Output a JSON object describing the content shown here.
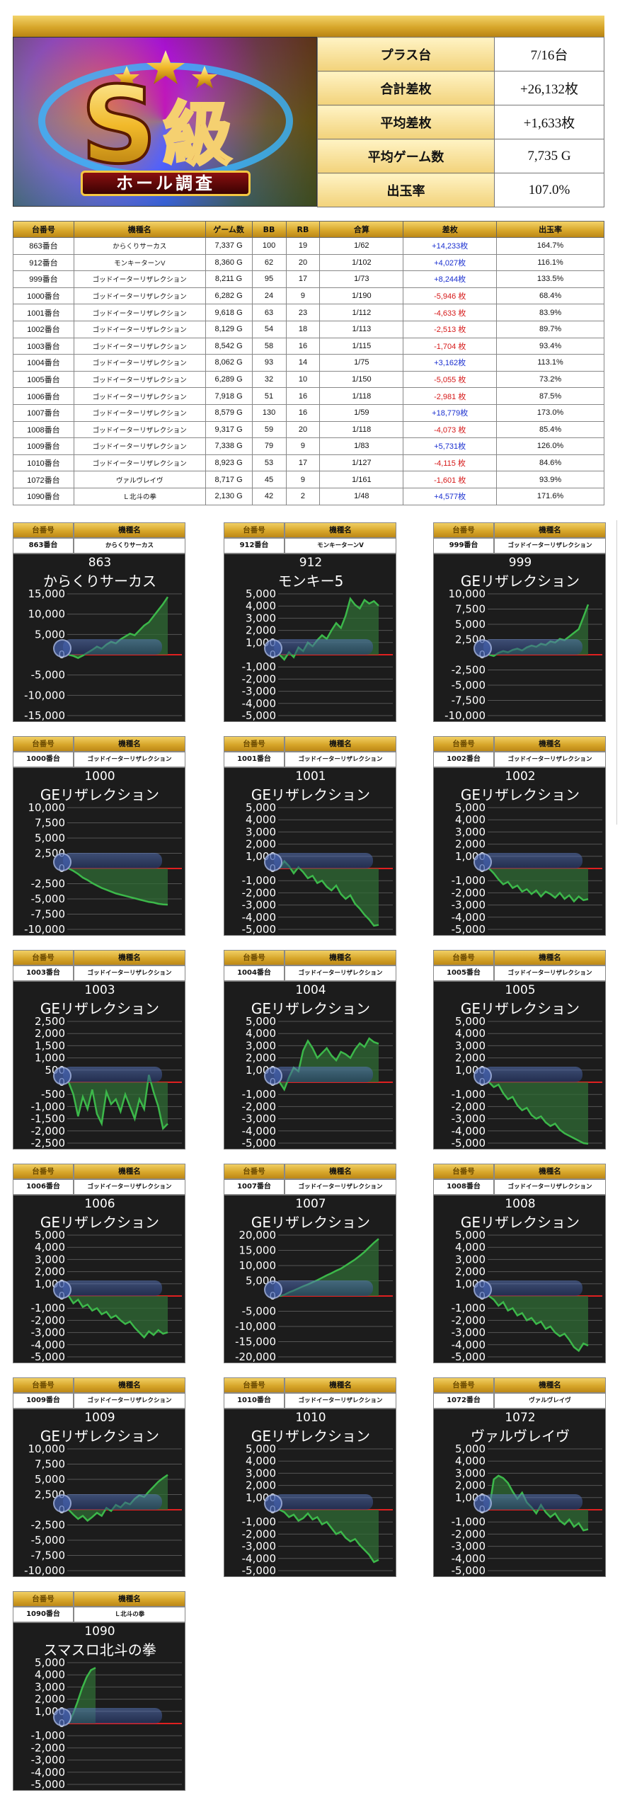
{
  "hero": {
    "badge_letter": "S",
    "badge_kanji": "級",
    "subtitle": "ホール調査"
  },
  "summary": [
    {
      "label": "プラス台",
      "value": "7/16台"
    },
    {
      "label": "合計差枚",
      "value": "+26,132枚"
    },
    {
      "label": "平均差枚",
      "value": "+1,633枚"
    },
    {
      "label": "平均ゲーム数",
      "value": "7,735 G"
    },
    {
      "label": "出玉率",
      "value": "107.0%"
    }
  ],
  "table": {
    "headers": [
      "台番号",
      "機種名",
      "ゲーム数",
      "BB",
      "RB",
      "合算",
      "差枚",
      "出玉率"
    ],
    "rows": [
      [
        "863番台",
        "からくりサーカス",
        "7,337 G",
        "100",
        "19",
        "1/62",
        "+14,233枚",
        "164.7%"
      ],
      [
        "912番台",
        "モンキーターンV",
        "8,360 G",
        "62",
        "20",
        "1/102",
        "+4,027枚",
        "116.1%"
      ],
      [
        "999番台",
        "ゴッドイーターリザレクション",
        "8,211 G",
        "95",
        "17",
        "1/73",
        "+8,244枚",
        "133.5%"
      ],
      [
        "1000番台",
        "ゴッドイーターリザレクション",
        "6,282 G",
        "24",
        "9",
        "1/190",
        "-5,946 枚",
        "68.4%"
      ],
      [
        "1001番台",
        "ゴッドイーターリザレクション",
        "9,618 G",
        "63",
        "23",
        "1/112",
        "-4,633 枚",
        "83.9%"
      ],
      [
        "1002番台",
        "ゴッドイーターリザレクション",
        "8,129 G",
        "54",
        "18",
        "1/113",
        "-2,513 枚",
        "89.7%"
      ],
      [
        "1003番台",
        "ゴッドイーターリザレクション",
        "8,542 G",
        "58",
        "16",
        "1/115",
        "-1,704 枚",
        "93.4%"
      ],
      [
        "1004番台",
        "ゴッドイーターリザレクション",
        "8,062 G",
        "93",
        "14",
        "1/75",
        "+3,162枚",
        "113.1%"
      ],
      [
        "1005番台",
        "ゴッドイーターリザレクション",
        "6,289 G",
        "32",
        "10",
        "1/150",
        "-5,055 枚",
        "73.2%"
      ],
      [
        "1006番台",
        "ゴッドイーターリザレクション",
        "7,918 G",
        "51",
        "16",
        "1/118",
        "-2,981 枚",
        "87.5%"
      ],
      [
        "1007番台",
        "ゴッドイーターリザレクション",
        "8,579 G",
        "130",
        "16",
        "1/59",
        "+18,779枚",
        "173.0%"
      ],
      [
        "1008番台",
        "ゴッドイーターリザレクション",
        "9,317 G",
        "59",
        "20",
        "1/118",
        "-4,073 枚",
        "85.4%"
      ],
      [
        "1009番台",
        "ゴッドイーターリザレクション",
        "7,338 G",
        "79",
        "9",
        "1/83",
        "+5,731枚",
        "126.0%"
      ],
      [
        "1010番台",
        "ゴッドイーターリザレクション",
        "8,923 G",
        "53",
        "17",
        "1/127",
        "-4,115 枚",
        "84.6%"
      ],
      [
        "1072番台",
        "ヴァルヴレイヴ",
        "8,717 G",
        "45",
        "9",
        "1/161",
        "-1,601 枚",
        "93.9%"
      ],
      [
        "1090番台",
        "Ｌ北斗の拳",
        "2,130 G",
        "42",
        "2",
        "1/48",
        "+4,577枚",
        "171.6%"
      ]
    ]
  },
  "panel_headers": {
    "col1": "台番号",
    "col2": "機種名"
  },
  "colors": {
    "line": "#3cb84a",
    "fill": "#2f6b34",
    "zero": "#e02020",
    "bg": "#1c1c1c",
    "plus": "#1a2fd0",
    "minus": "#d61818"
  },
  "chart_data": [
    {
      "type": "line",
      "machine_no": "863番台",
      "machine_name": "からくりサーカス",
      "title_num": "863",
      "title": "からくりサーカス",
      "yticks": [
        "15,000",
        "10,000",
        "5,000",
        "0",
        "-5,000",
        "-10,000",
        "-15,000"
      ],
      "ylim": [
        -15000,
        15000
      ],
      "final": 14233,
      "values": [
        0,
        -300,
        -800,
        -200,
        500,
        1200,
        2000,
        1500,
        2500,
        3200,
        2800,
        3800,
        4500,
        5200,
        4800,
        6000,
        7200,
        8000,
        9500,
        11000,
        12500,
        14233
      ]
    },
    {
      "type": "line",
      "machine_no": "912番台",
      "machine_name": "モンキーターンV",
      "title_num": "912",
      "title": "モンキー5",
      "yticks": [
        "5,000",
        "4,000",
        "3,000",
        "2,000",
        "1,000",
        "0",
        "-1,000",
        "-2,000",
        "-3,000",
        "-4,000",
        "-5,000"
      ],
      "ylim": [
        -5000,
        5000
      ],
      "final": 4027,
      "values": [
        0,
        -400,
        200,
        -200,
        600,
        300,
        1000,
        700,
        1200,
        1600,
        1300,
        2000,
        2600,
        2200,
        3200,
        4600,
        4100,
        3800,
        4500,
        4200,
        4400,
        4027
      ]
    },
    {
      "type": "line",
      "machine_no": "999番台",
      "machine_name": "ゴッドイーターリザレクション",
      "title_num": "999",
      "title": "GEリザレクション",
      "yticks": [
        "10,000",
        "7,500",
        "5,000",
        "2,500",
        "0",
        "-2,500",
        "-5,000",
        "-7,500",
        "-10,000"
      ],
      "ylim": [
        -10000,
        10000
      ],
      "final": 8244,
      "values": [
        0,
        -200,
        300,
        600,
        400,
        800,
        1000,
        700,
        1200,
        1500,
        1300,
        1800,
        1600,
        2200,
        2000,
        2600,
        2400,
        3000,
        3600,
        4200,
        6200,
        8244
      ]
    },
    {
      "type": "line",
      "machine_no": "1000番台",
      "machine_name": "ゴッドイーターリザレクション",
      "title_num": "1000",
      "title": "GEリザレクション",
      "yticks": [
        "10,000",
        "7,500",
        "5,000",
        "2,500",
        "0",
        "-2,500",
        "-5,000",
        "-7,500",
        "-10,000"
      ],
      "ylim": [
        -10000,
        10000
      ],
      "final": -5946,
      "values": [
        0,
        -400,
        -900,
        -1500,
        -1900,
        -2400,
        -2800,
        -3200,
        -3500,
        -3800,
        -4100,
        -4300,
        -4500,
        -4700,
        -4900,
        -5100,
        -5300,
        -5500,
        -5600,
        -5800,
        -5900,
        -5946
      ]
    },
    {
      "type": "line",
      "machine_no": "1001番台",
      "machine_name": "ゴッドイーターリザレクション",
      "title_num": "1001",
      "title": "GEリザレクション",
      "yticks": [
        "5,000",
        "4,000",
        "3,000",
        "2,000",
        "1,000",
        "0",
        "-1,000",
        "-2,000",
        "-3,000",
        "-4,000",
        "-5,000"
      ],
      "ylim": [
        -5000,
        5000
      ],
      "final": -4633,
      "values": [
        0,
        600,
        200,
        -400,
        100,
        -300,
        -800,
        -600,
        -1200,
        -1000,
        -1500,
        -1800,
        -1400,
        -2100,
        -2500,
        -2200,
        -2900,
        -3300,
        -3800,
        -4200,
        -4700,
        -4633
      ]
    },
    {
      "type": "line",
      "machine_no": "1002番台",
      "machine_name": "ゴッドイーターリザレクション",
      "title_num": "1002",
      "title": "GEリザレクション",
      "yticks": [
        "5,000",
        "4,000",
        "3,000",
        "2,000",
        "1,000",
        "0",
        "-1,000",
        "-2,000",
        "-3,000",
        "-4,000",
        "-5,000"
      ],
      "ylim": [
        -5000,
        5000
      ],
      "final": -2513,
      "values": [
        0,
        -400,
        -900,
        -1300,
        -1100,
        -1600,
        -1400,
        -1900,
        -1700,
        -2100,
        -1800,
        -2300,
        -1900,
        -2100,
        -2400,
        -2000,
        -2500,
        -2200,
        -2700,
        -2300,
        -2600,
        -2513
      ]
    },
    {
      "type": "line",
      "machine_no": "1003番台",
      "machine_name": "ゴッドイーターリザレクション",
      "title_num": "1003",
      "title": "GEリザレクション",
      "yticks": [
        "2,500",
        "2,000",
        "1,500",
        "1,000",
        "500",
        "0",
        "-500",
        "-1,000",
        "-1,500",
        "-2,000",
        "-2,500"
      ],
      "ylim": [
        -2500,
        2500
      ],
      "final": -1704,
      "values": [
        0,
        -500,
        -1400,
        -600,
        -1100,
        -300,
        -1300,
        -1700,
        -400,
        -900,
        -700,
        -1200,
        -500,
        -1000,
        -1500,
        -700,
        -1100,
        300,
        -400,
        -1000,
        -1900,
        -1704
      ]
    },
    {
      "type": "line",
      "machine_no": "1004番台",
      "machine_name": "ゴッドイーターリザレクション",
      "title_num": "1004",
      "title": "GEリザレクション",
      "yticks": [
        "5,000",
        "4,000",
        "3,000",
        "2,000",
        "1,000",
        "0",
        "-1,000",
        "-2,000",
        "-3,000",
        "-4,000",
        "-5,000"
      ],
      "ylim": [
        -5000,
        5000
      ],
      "final": 3162,
      "values": [
        0,
        -600,
        400,
        1200,
        900,
        2600,
        3400,
        2800,
        2000,
        2400,
        2800,
        2200,
        1800,
        2500,
        2300,
        2000,
        2700,
        3200,
        2900,
        3600,
        3300,
        3162
      ]
    },
    {
      "type": "line",
      "machine_no": "1005番台",
      "machine_name": "ゴッドイーターリザレクション",
      "title_num": "1005",
      "title": "GEリザレクション",
      "yticks": [
        "5,000",
        "4,000",
        "3,000",
        "2,000",
        "1,000",
        "0",
        "-1,000",
        "-2,000",
        "-3,000",
        "-4,000",
        "-5,000"
      ],
      "ylim": [
        -5000,
        5000
      ],
      "final": -5055,
      "values": [
        0,
        -400,
        -200,
        -900,
        -1400,
        -1200,
        -1900,
        -2300,
        -2100,
        -2700,
        -3000,
        -2800,
        -3300,
        -3600,
        -3400,
        -3900,
        -4200,
        -4400,
        -4600,
        -4800,
        -5000,
        -5055
      ]
    },
    {
      "type": "line",
      "machine_no": "1006番台",
      "machine_name": "ゴッドイーターリザレクション",
      "title_num": "1006",
      "title": "GEリザレクション",
      "yticks": [
        "5,000",
        "4,000",
        "3,000",
        "2,000",
        "1,000",
        "0",
        "-1,000",
        "-2,000",
        "-3,000",
        "-4,000",
        "-5,000"
      ],
      "ylim": [
        -5000,
        5000
      ],
      "final": -2981,
      "values": [
        0,
        -600,
        -300,
        -900,
        -700,
        -1200,
        -1000,
        -1500,
        -1300,
        -1800,
        -1600,
        -2000,
        -2300,
        -2100,
        -2600,
        -3000,
        -3400,
        -2900,
        -3200,
        -2800,
        -3100,
        -2981
      ]
    },
    {
      "type": "line",
      "machine_no": "1007番台",
      "machine_name": "ゴッドイーターリザレクション",
      "title_num": "1007",
      "title": "GEリザレクション",
      "yticks": [
        "20,000",
        "15,000",
        "10,000",
        "5,000",
        "0",
        "-5,000",
        "-10,000",
        "-15,000",
        "-20,000"
      ],
      "ylim": [
        -20000,
        20000
      ],
      "final": 18779,
      "values": [
        0,
        400,
        1200,
        1800,
        2500,
        3200,
        3800,
        4500,
        5200,
        6000,
        6800,
        7500,
        8300,
        9000,
        10000,
        11000,
        12000,
        13200,
        14500,
        16000,
        17500,
        18779
      ]
    },
    {
      "type": "line",
      "machine_no": "1008番台",
      "machine_name": "ゴッドイーターリザレクション",
      "title_num": "1008",
      "title": "GEリザレクション",
      "yticks": [
        "5,000",
        "4,000",
        "3,000",
        "2,000",
        "1,000",
        "0",
        "-1,000",
        "-2,000",
        "-3,000",
        "-4,000",
        "-5,000"
      ],
      "ylim": [
        -5000,
        5000
      ],
      "final": -4073,
      "values": [
        0,
        -300,
        -800,
        -500,
        -1200,
        -1000,
        -1600,
        -1400,
        -2000,
        -1800,
        -2300,
        -2100,
        -2700,
        -2500,
        -3000,
        -3300,
        -3100,
        -3600,
        -4200,
        -4500,
        -3900,
        -4073
      ]
    },
    {
      "type": "line",
      "machine_no": "1009番台",
      "machine_name": "ゴッドイーターリザレクション",
      "title_num": "1009",
      "title": "GEリザレクション",
      "yticks": [
        "10,000",
        "7,500",
        "5,000",
        "2,500",
        "0",
        "-2,500",
        "-5,000",
        "-7,500",
        "-10,000"
      ],
      "ylim": [
        -10000,
        10000
      ],
      "final": 5731,
      "values": [
        0,
        -800,
        -1500,
        -1000,
        -1800,
        -1200,
        -500,
        -1000,
        300,
        -200,
        800,
        400,
        1200,
        900,
        1800,
        2400,
        2100,
        3000,
        3800,
        4600,
        5200,
        5731
      ]
    },
    {
      "type": "line",
      "machine_no": "1010番台",
      "machine_name": "ゴッドイーターリザレクション",
      "title_num": "1010",
      "title": "GEリザレクション",
      "yticks": [
        "5,000",
        "4,000",
        "3,000",
        "2,000",
        "1,000",
        "0",
        "-1,000",
        "-2,000",
        "-3,000",
        "-4,000",
        "-5,000"
      ],
      "ylim": [
        -5000,
        5000
      ],
      "final": -4115,
      "values": [
        0,
        -200,
        -600,
        -400,
        -900,
        -700,
        -300,
        -800,
        -600,
        -1200,
        -1000,
        -1500,
        -2000,
        -1800,
        -2300,
        -2600,
        -2400,
        -2900,
        -3300,
        -3700,
        -4300,
        -4115
      ]
    },
    {
      "type": "line",
      "machine_no": "1072番台",
      "machine_name": "ヴァルヴレイヴ",
      "title_num": "1072",
      "title": "ヴァルヴレイヴ",
      "yticks": [
        "5,000",
        "4,000",
        "3,000",
        "2,000",
        "1,000",
        "0",
        "-1,000",
        "-2,000",
        "-3,000",
        "-4,000",
        "-5,000"
      ],
      "ylim": [
        -5000,
        5000
      ],
      "final": -1601,
      "values": [
        0,
        2500,
        2800,
        2600,
        2200,
        1500,
        900,
        1400,
        600,
        200,
        -300,
        400,
        -200,
        -600,
        -300,
        -900,
        -1200,
        -800,
        -1400,
        -1100,
        -1700,
        -1601
      ]
    },
    {
      "type": "line",
      "machine_no": "1090番台",
      "machine_name": "Ｌ北斗の拳",
      "title_num": "1090",
      "title": "スマスロ北斗の拳",
      "yticks": [
        "5,000",
        "4,000",
        "3,000",
        "2,000",
        "1,000",
        "0",
        "-1,000",
        "-2,000",
        "-3,000",
        "-4,000",
        "-5,000"
      ],
      "ylim": [
        -5000,
        5000
      ],
      "final": 4577,
      "values": [
        0,
        800,
        1800,
        2900,
        3800,
        4400,
        4577
      ]
    }
  ]
}
